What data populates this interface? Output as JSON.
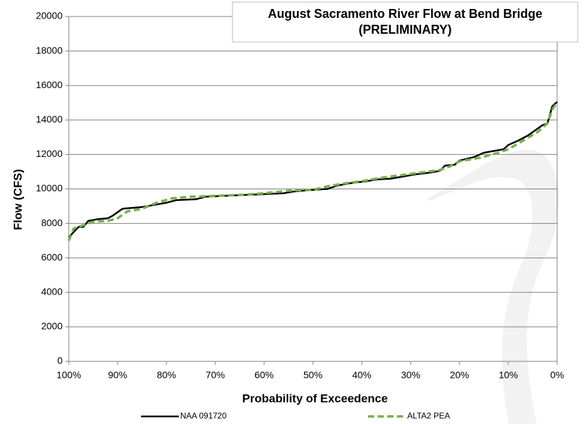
{
  "chart_data": {
    "type": "line",
    "title": "August Sacramento River Flow at Bend Bridge",
    "subtitle": "(PRELIMINARY)",
    "x_label": "Probability of Exceedence",
    "y_label": "Flow (CFS)",
    "xlim": [
      100,
      0
    ],
    "xticks": [
      {
        "value": 100,
        "label": "100%"
      },
      {
        "value": 90,
        "label": "90%"
      },
      {
        "value": 80,
        "label": "80%"
      },
      {
        "value": 70,
        "label": "70%"
      },
      {
        "value": 60,
        "label": "60%"
      },
      {
        "value": 50,
        "label": "50%"
      },
      {
        "value": 40,
        "label": "40%"
      },
      {
        "value": 30,
        "label": "30%"
      },
      {
        "value": 20,
        "label": "20%"
      },
      {
        "value": 10,
        "label": "10%"
      },
      {
        "value": 0,
        "label": "0%"
      }
    ],
    "ylim": [
      0,
      20000
    ],
    "yticks": [
      0,
      2000,
      4000,
      6000,
      8000,
      10000,
      12000,
      14000,
      16000,
      18000,
      20000
    ],
    "grid": true,
    "legend": "bottom",
    "series": [
      {
        "name": "NAA 091720",
        "color": "#000000",
        "dashed": false,
        "x": [
          100,
          98,
          97,
          96,
          94,
          92,
          91,
          89,
          85,
          83,
          80,
          78,
          74,
          72,
          68,
          64,
          60,
          56,
          54,
          50,
          47,
          45,
          42,
          39,
          37,
          34,
          31,
          29,
          26,
          24,
          23,
          21,
          20,
          17,
          15,
          13,
          11,
          10,
          8,
          6,
          5,
          3,
          2,
          1,
          0
        ],
        "values": [
          7200,
          7800,
          7800,
          8150,
          8250,
          8300,
          8450,
          8850,
          8950,
          9050,
          9200,
          9350,
          9400,
          9550,
          9600,
          9650,
          9700,
          9750,
          9850,
          9950,
          10000,
          10200,
          10350,
          10450,
          10550,
          10600,
          10750,
          10850,
          10950,
          11050,
          11350,
          11400,
          11650,
          11850,
          12100,
          12200,
          12300,
          12550,
          12800,
          13100,
          13300,
          13700,
          13800,
          14800,
          15050
        ]
      },
      {
        "name": "ALTA2 PEA",
        "color": "#77b149",
        "dashed": true,
        "x": [
          100,
          99,
          97,
          95,
          92,
          90,
          88,
          85,
          82,
          79,
          75,
          70,
          65,
          60,
          55,
          50,
          47,
          44,
          40,
          36,
          32,
          28,
          24,
          22,
          20,
          16,
          12,
          10,
          7,
          4,
          2,
          1,
          0
        ],
        "values": [
          7000,
          7700,
          7900,
          8100,
          8150,
          8300,
          8700,
          8850,
          9200,
          9450,
          9550,
          9600,
          9650,
          9750,
          9900,
          9950,
          10150,
          10300,
          10450,
          10650,
          10800,
          10950,
          11100,
          11300,
          11600,
          11800,
          12100,
          12300,
          12800,
          13300,
          13800,
          14600,
          15050
        ]
      }
    ]
  }
}
